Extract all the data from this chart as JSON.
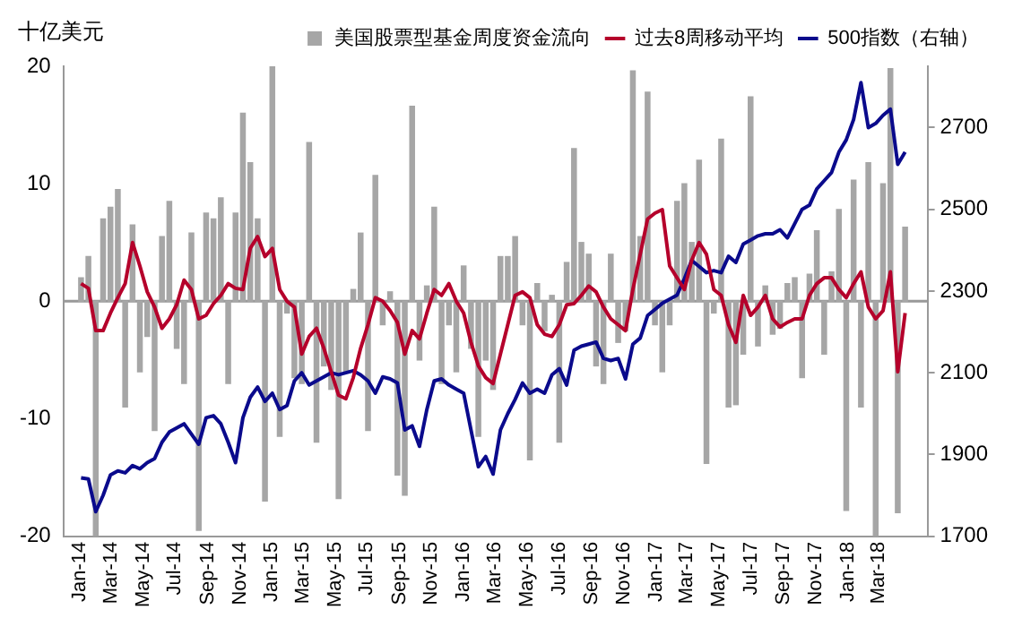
{
  "chart_data": {
    "type": "bar",
    "ylabel": "十亿美元",
    "legend": "top",
    "marker": "none",
    "x": [
      "2014-01-03",
      "2014-01-17",
      "2014-01-31",
      "2014-02-14",
      "2014-02-28",
      "2014-03-14",
      "2014-03-28",
      "2014-04-11",
      "2014-04-25",
      "2014-05-09",
      "2014-05-23",
      "2014-06-06",
      "2014-06-20",
      "2014-07-04",
      "2014-07-18",
      "2014-08-01",
      "2014-08-15",
      "2014-08-29",
      "2014-09-12",
      "2014-09-26",
      "2014-10-10",
      "2014-10-24",
      "2014-11-07",
      "2014-11-21",
      "2014-12-05",
      "2014-12-19",
      "2015-01-02",
      "2015-01-16",
      "2015-01-30",
      "2015-02-13",
      "2015-02-27",
      "2015-03-13",
      "2015-03-27",
      "2015-04-10",
      "2015-04-24",
      "2015-05-08",
      "2015-05-22",
      "2015-06-05",
      "2015-06-19",
      "2015-07-03",
      "2015-07-17",
      "2015-07-31",
      "2015-08-14",
      "2015-08-28",
      "2015-09-11",
      "2015-09-25",
      "2015-10-09",
      "2015-10-23",
      "2015-11-06",
      "2015-11-20",
      "2015-12-04",
      "2015-12-18",
      "2016-01-01",
      "2016-01-15",
      "2016-01-29",
      "2016-02-12",
      "2016-02-26",
      "2016-03-11",
      "2016-03-25",
      "2016-04-08",
      "2016-04-22",
      "2016-05-06",
      "2016-05-20",
      "2016-06-03",
      "2016-06-17",
      "2016-07-01",
      "2016-07-15",
      "2016-07-29",
      "2016-08-12",
      "2016-08-26",
      "2016-09-09",
      "2016-09-23",
      "2016-10-07",
      "2016-10-21",
      "2016-11-04",
      "2016-11-18",
      "2016-12-02",
      "2016-12-16",
      "2016-12-30",
      "2017-01-13",
      "2017-01-27",
      "2017-02-10",
      "2017-02-24",
      "2017-03-10",
      "2017-03-24",
      "2017-04-07",
      "2017-04-21",
      "2017-05-05",
      "2017-05-19",
      "2017-06-02",
      "2017-06-16",
      "2017-06-30",
      "2017-07-14",
      "2017-07-28",
      "2017-08-11",
      "2017-08-25",
      "2017-09-08",
      "2017-09-22",
      "2017-10-06",
      "2017-10-20",
      "2017-11-03",
      "2017-11-17",
      "2017-12-01",
      "2017-12-15",
      "2017-12-29",
      "2018-01-12",
      "2018-01-26",
      "2018-02-09",
      "2018-02-23",
      "2018-03-09",
      "2018-03-23",
      "2018-04-06",
      "2018-04-20"
    ],
    "series": [
      {
        "name": "美国股票型基金周度资金流向",
        "color": "#a6a6a6",
        "values": [
          2,
          3.8,
          -20,
          7,
          8,
          9.5,
          -9,
          6.5,
          -6,
          -3,
          -11,
          5.5,
          8.5,
          -4,
          -7,
          5.8,
          -19.5,
          7.5,
          7,
          8.8,
          -7,
          7.5,
          16,
          11.8,
          7,
          -17,
          20,
          -11.5,
          -1,
          -6.5,
          -7,
          13.5,
          -12,
          -5.5,
          -7.5,
          -16.8,
          -6,
          1,
          5.8,
          -11,
          10.7,
          -2,
          0.8,
          -14.8,
          -16.5,
          16.6,
          -5,
          1.3,
          8,
          -7,
          -2,
          -6,
          3,
          -4,
          -11.5,
          -5,
          -7.5,
          3.8,
          3.8,
          5.5,
          -2,
          -13.5,
          1.5,
          -2.5,
          0.5,
          -12,
          3.3,
          13,
          5,
          4,
          -5.5,
          -7,
          4,
          -3.5,
          -2.5,
          19.6,
          5.5,
          17.8,
          -2,
          -6,
          -2,
          8.5,
          10,
          5,
          12,
          -13.8,
          -1,
          13.8,
          -9,
          -8.8,
          -4.5,
          17.4,
          -3.8,
          1.3,
          -2.8,
          -2.3,
          1.5,
          2,
          -6.5,
          2.3,
          6,
          -4.5,
          2.5,
          7.8,
          -17.8,
          10.3,
          -9,
          11.8,
          -20,
          10,
          19.8,
          -18,
          6.3
        ]
      },
      {
        "name": "过去8周移动平均",
        "type": "line",
        "color": "#b5002b",
        "values": [
          1.5,
          1.1,
          -2.5,
          -2.5,
          -1,
          0.3,
          1.5,
          5,
          3,
          0.8,
          -0.5,
          -2.3,
          -1.5,
          -0.3,
          1.8,
          1,
          -1.5,
          -1.2,
          -0.2,
          0.5,
          1.5,
          1.1,
          1,
          4.5,
          5.5,
          3.8,
          4.5,
          1,
          0,
          -0.5,
          -4.5,
          -3,
          -2.3,
          -4,
          -6,
          -8,
          -8.3,
          -6.5,
          -4,
          -2,
          0.3,
          0,
          -0.8,
          -1.8,
          -4.5,
          -2.5,
          -3.2,
          -1,
          1,
          0.5,
          1.5,
          0,
          -1,
          -3.5,
          -5.5,
          -6.5,
          -7,
          -4.5,
          -2,
          0.5,
          0.8,
          0.3,
          -2,
          -2.8,
          -3,
          -2,
          -0.3,
          -0.2,
          0.5,
          1.3,
          0.8,
          -0.5,
          -1.5,
          -2,
          -2.5,
          1,
          4,
          7,
          7.5,
          7.8,
          3,
          2,
          1,
          3.5,
          5,
          4,
          1,
          0.5,
          -2,
          -3.5,
          0.5,
          -1.2,
          -0.5,
          0.5,
          -1.5,
          -2.2,
          -1.8,
          -1.5,
          -1.5,
          0.5,
          1.5,
          2,
          2,
          1,
          0.3,
          1.5,
          2.5,
          -0.5,
          -1.5,
          -0.8,
          2.5,
          -6,
          -1
        ]
      },
      {
        "name": "500指数（右轴）",
        "type": "line",
        "axis": "y2",
        "color": "#0a0a8c",
        "values": [
          1843,
          1840,
          1760,
          1800,
          1850,
          1860,
          1855,
          1873,
          1865,
          1880,
          1890,
          1930,
          1955,
          1965,
          1975,
          1950,
          1925,
          1990,
          1995,
          1975,
          1930,
          1880,
          1990,
          2040,
          2065,
          2030,
          2050,
          2010,
          2020,
          2080,
          2100,
          2070,
          2080,
          2090,
          2100,
          2095,
          2100,
          2105,
          2095,
          2080,
          2050,
          2090,
          2085,
          2075,
          1960,
          1970,
          1920,
          2010,
          2080,
          2085,
          2070,
          2060,
          2050,
          1960,
          1870,
          1895,
          1852,
          1960,
          2000,
          2035,
          2075,
          2050,
          2060,
          2050,
          2095,
          2110,
          2070,
          2155,
          2165,
          2170,
          2175,
          2135,
          2130,
          2135,
          2085,
          2170,
          2185,
          2240,
          2255,
          2270,
          2280,
          2290,
          2330,
          2375,
          2360,
          2345,
          2350,
          2345,
          2385,
          2370,
          2415,
          2425,
          2435,
          2440,
          2440,
          2450,
          2430,
          2465,
          2500,
          2510,
          2550,
          2570,
          2590,
          2640,
          2670,
          2720,
          2810,
          2700,
          2710,
          2730,
          2745,
          2610,
          2640
        ]
      }
    ],
    "xlim": [
      "2014-01-01",
      "2018-05-01"
    ],
    "xticks": [
      {
        "value": "2014-01-01",
        "label": "Jan-14"
      },
      {
        "value": "2014-03-01",
        "label": "Mar-14"
      },
      {
        "value": "2014-05-01",
        "label": "May-14"
      },
      {
        "value": "2014-07-01",
        "label": "Jul-14"
      },
      {
        "value": "2014-09-01",
        "label": "Sep-14"
      },
      {
        "value": "2014-11-01",
        "label": "Nov-14"
      },
      {
        "value": "2015-01-01",
        "label": "Jan-15"
      },
      {
        "value": "2015-03-01",
        "label": "Mar-15"
      },
      {
        "value": "2015-05-01",
        "label": "May-15"
      },
      {
        "value": "2015-07-01",
        "label": "Jul-15"
      },
      {
        "value": "2015-09-01",
        "label": "Sep-15"
      },
      {
        "value": "2015-11-01",
        "label": "Nov-15"
      },
      {
        "value": "2016-01-01",
        "label": "Jan-16"
      },
      {
        "value": "2016-03-01",
        "label": "Mar-16"
      },
      {
        "value": "2016-05-01",
        "label": "May-16"
      },
      {
        "value": "2016-07-01",
        "label": "Jul-16"
      },
      {
        "value": "2016-09-01",
        "label": "Sep-16"
      },
      {
        "value": "2016-11-01",
        "label": "Nov-16"
      },
      {
        "value": "2017-01-01",
        "label": "Jan-17"
      },
      {
        "value": "2017-03-01",
        "label": "Mar-17"
      },
      {
        "value": "2017-05-01",
        "label": "May-17"
      },
      {
        "value": "2017-07-01",
        "label": "Jul-17"
      },
      {
        "value": "2017-09-01",
        "label": "Sep-17"
      },
      {
        "value": "2017-11-01",
        "label": "Nov-17"
      },
      {
        "value": "2018-01-01",
        "label": "Jan-18"
      },
      {
        "value": "2018-03-01",
        "label": "Mar-18"
      }
    ],
    "ylim": [
      -20,
      20
    ],
    "yticks": [
      -20,
      -10,
      0,
      10,
      20
    ],
    "y2lim": [
      1700,
      2850
    ],
    "y2ticks": [
      1700,
      1900,
      2100,
      2300,
      2500,
      2700
    ],
    "ref_lines": [
      {
        "axis": "y",
        "value": 0,
        "color": "#999999"
      }
    ]
  }
}
